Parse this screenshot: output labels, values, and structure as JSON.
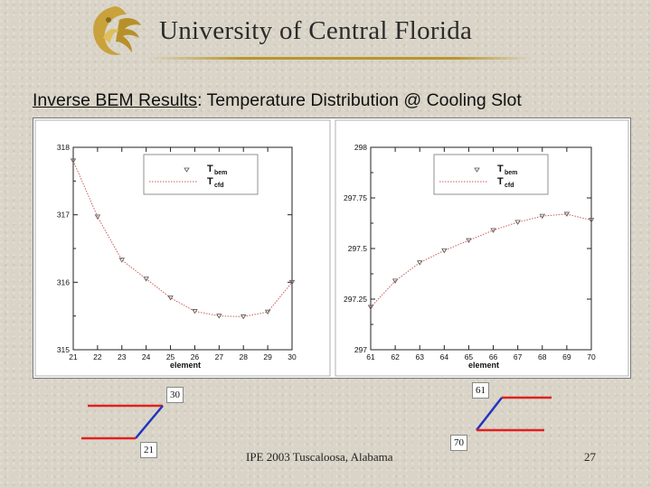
{
  "header": {
    "university": "University of Central Florida"
  },
  "slide": {
    "title_underlined": "Inverse BEM Results",
    "title_rest": ": Temperature Distribution @ Cooling Slot"
  },
  "chart_data": [
    {
      "type": "line",
      "x": [
        21,
        22,
        23,
        24,
        25,
        26,
        27,
        28,
        29,
        30
      ],
      "series": [
        {
          "name": "Tbem",
          "marker": "triangle-down",
          "values": [
            317.8,
            316.97,
            316.33,
            316.05,
            315.77,
            315.57,
            315.5,
            315.49,
            315.56,
            316.0
          ]
        },
        {
          "name": "Tcfd",
          "line": "dotted",
          "values": [
            317.8,
            316.97,
            316.33,
            316.05,
            315.77,
            315.57,
            315.5,
            315.49,
            315.56,
            316.0
          ]
        }
      ],
      "xticks": [
        "21",
        "22",
        "23",
        "24",
        "25",
        "26",
        "27",
        "28",
        "29",
        "30"
      ],
      "yticks": [
        "318",
        "317",
        "316",
        "315"
      ],
      "xlabel": "element",
      "ylabel": "",
      "xlim": [
        21,
        30
      ],
      "ylim": [
        315,
        318
      ],
      "legend": {
        "position": "top-right",
        "entries": [
          "T",
          "T"
        ],
        "subscripts": [
          "bem",
          "cfd"
        ]
      },
      "color": "#cc5a5a"
    },
    {
      "type": "line",
      "x": [
        61,
        62,
        63,
        64,
        65,
        66,
        67,
        68,
        69,
        70
      ],
      "series": [
        {
          "name": "Tbem",
          "marker": "triangle-down",
          "values": [
            297.21,
            297.34,
            297.43,
            297.49,
            297.54,
            297.59,
            297.63,
            297.66,
            297.67,
            297.64
          ]
        },
        {
          "name": "Tcfd",
          "line": "dotted",
          "values": [
            297.21,
            297.34,
            297.43,
            297.49,
            297.54,
            297.59,
            297.63,
            297.66,
            297.67,
            297.64
          ]
        }
      ],
      "xticks": [
        "61",
        "62",
        "63",
        "64",
        "65",
        "66",
        "67",
        "68",
        "69",
        "70"
      ],
      "yticks": [
        "298",
        "297.75",
        "297.5",
        "297.25",
        "297"
      ],
      "xlabel": "element",
      "ylabel": "",
      "xlim": [
        61,
        70
      ],
      "ylim": [
        297,
        298
      ],
      "legend": {
        "position": "top-right",
        "entries": [
          "T",
          "T"
        ],
        "subscripts": [
          "bem",
          "cfd"
        ]
      },
      "color": "#cc5a5a"
    }
  ],
  "schematic": {
    "labels": [
      "30",
      "21",
      "61",
      "70"
    ],
    "colors": {
      "slot_wall": "#e02020",
      "connector": "#2035c0"
    }
  },
  "footer": {
    "conference": "IPE 2003 Tuscaloosa, Alabama",
    "page": "27"
  },
  "colors": {
    "brand_gold": "#c9a23c",
    "background": "#d9d4c7"
  }
}
